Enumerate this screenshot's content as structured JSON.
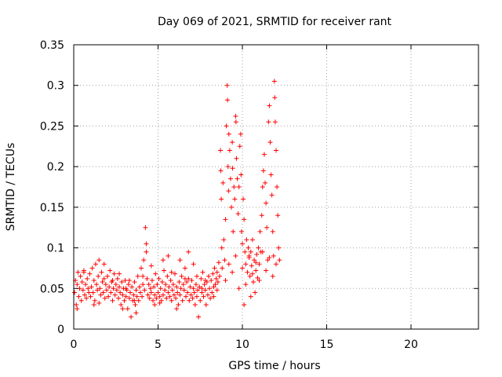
{
  "chart_data": {
    "type": "scatter",
    "title": "Day 069 of 2021, SRMTID for receiver rant",
    "xlabel": "GPS time / hours",
    "ylabel": "SRMTID / TECUs",
    "xlim": [
      0,
      24
    ],
    "ylim": [
      0,
      0.35
    ],
    "xticks": [
      0,
      5,
      10,
      15,
      20
    ],
    "xtick_labels": [
      "0",
      "5",
      "10",
      "15",
      "20"
    ],
    "yticks": [
      0,
      0.05,
      0.1,
      0.15,
      0.2,
      0.25,
      0.3,
      0.35
    ],
    "ytick_labels": [
      "0",
      "0.05",
      "0.1",
      "0.15",
      "0.2",
      "0.25",
      "0.3",
      "0.35"
    ],
    "grid": true,
    "marker": "plus",
    "color": "#ff0000",
    "series": [
      {
        "points": [
          [
            0.05,
            0.045
          ],
          [
            0.1,
            0.06
          ],
          [
            0.15,
            0.03
          ],
          [
            0.2,
            0.055
          ],
          [
            0.25,
            0.07
          ],
          [
            0.3,
            0.04
          ],
          [
            0.35,
            0.05
          ],
          [
            0.4,
            0.065
          ],
          [
            0.45,
            0.035
          ],
          [
            0.5,
            0.058
          ],
          [
            0.55,
            0.048
          ],
          [
            0.6,
            0.072
          ],
          [
            0.65,
            0.042
          ],
          [
            0.7,
            0.055
          ],
          [
            0.75,
            0.038
          ],
          [
            0.8,
            0.062
          ],
          [
            0.85,
            0.05
          ],
          [
            0.9,
            0.045
          ],
          [
            0.95,
            0.068
          ],
          [
            1.0,
            0.04
          ],
          [
            1.05,
            0.052
          ],
          [
            1.1,
            0.075
          ],
          [
            1.15,
            0.045
          ],
          [
            1.2,
            0.06
          ],
          [
            1.25,
            0.035
          ],
          [
            1.3,
            0.08
          ],
          [
            1.35,
            0.055
          ],
          [
            1.4,
            0.048
          ],
          [
            1.45,
            0.065
          ],
          [
            1.5,
            0.085
          ],
          [
            1.55,
            0.05
          ],
          [
            1.6,
            0.042
          ],
          [
            1.65,
            0.07
          ],
          [
            1.7,
            0.058
          ],
          [
            1.75,
            0.045
          ],
          [
            1.8,
            0.062
          ],
          [
            1.85,
            0.038
          ],
          [
            1.9,
            0.055
          ],
          [
            1.95,
            0.048
          ],
          [
            2.0,
            0.065
          ],
          [
            2.05,
            0.04
          ],
          [
            2.1,
            0.052
          ],
          [
            2.15,
            0.072
          ],
          [
            2.2,
            0.045
          ],
          [
            2.25,
            0.058
          ],
          [
            2.3,
            0.035
          ],
          [
            2.35,
            0.05
          ],
          [
            2.4,
            0.068
          ],
          [
            2.45,
            0.042
          ],
          [
            2.5,
            0.055
          ],
          [
            2.55,
            0.048
          ],
          [
            2.6,
            0.062
          ],
          [
            2.65,
            0.038
          ],
          [
            2.7,
            0.052
          ],
          [
            2.75,
            0.045
          ],
          [
            2.8,
            0.03
          ],
          [
            2.85,
            0.058
          ],
          [
            2.9,
            0.042
          ],
          [
            2.95,
            0.05
          ],
          [
            3.0,
            0.035
          ],
          [
            3.05,
            0.06
          ],
          [
            3.1,
            0.04
          ],
          [
            3.15,
            0.048
          ],
          [
            3.2,
            0.025
          ],
          [
            3.25,
            0.055
          ],
          [
            3.3,
            0.038
          ],
          [
            3.35,
            0.045
          ],
          [
            3.4,
            0.015
          ],
          [
            3.45,
            0.052
          ],
          [
            3.5,
            0.035
          ],
          [
            3.55,
            0.042
          ],
          [
            3.6,
            0.058
          ],
          [
            3.65,
            0.03
          ],
          [
            3.7,
            0.048
          ],
          [
            3.75,
            0.04
          ],
          [
            3.8,
            0.065
          ],
          [
            3.85,
            0.035
          ],
          [
            3.9,
            0.052
          ],
          [
            3.95,
            0.045
          ],
          [
            4.0,
            0.075
          ],
          [
            4.05,
            0.04
          ],
          [
            4.1,
            0.055
          ],
          [
            4.15,
            0.085
          ],
          [
            4.2,
            0.048
          ],
          [
            4.25,
            0.125
          ],
          [
            4.3,
            0.105
          ],
          [
            4.35,
            0.062
          ],
          [
            4.4,
            0.042
          ],
          [
            4.45,
            0.055
          ],
          [
            4.5,
            0.038
          ],
          [
            4.55,
            0.05
          ],
          [
            4.6,
            0.045
          ],
          [
            4.65,
            0.06
          ],
          [
            4.7,
            0.035
          ],
          [
            4.75,
            0.052
          ],
          [
            4.8,
            0.042
          ],
          [
            4.85,
            0.068
          ],
          [
            4.9,
            0.038
          ],
          [
            4.95,
            0.055
          ],
          [
            5.0,
            0.045
          ],
          [
            5.05,
            0.062
          ],
          [
            5.1,
            0.04
          ],
          [
            5.15,
            0.05
          ],
          [
            5.2,
            0.035
          ],
          [
            5.25,
            0.058
          ],
          [
            5.3,
            0.042
          ],
          [
            5.35,
            0.072
          ],
          [
            5.4,
            0.048
          ],
          [
            5.45,
            0.055
          ],
          [
            5.5,
            0.038
          ],
          [
            5.55,
            0.065
          ],
          [
            5.6,
            0.045
          ],
          [
            5.65,
            0.052
          ],
          [
            5.7,
            0.04
          ],
          [
            5.75,
            0.06
          ],
          [
            5.8,
            0.035
          ],
          [
            5.85,
            0.048
          ],
          [
            5.9,
            0.055
          ],
          [
            5.95,
            0.042
          ],
          [
            6.0,
            0.068
          ],
          [
            6.05,
            0.038
          ],
          [
            6.1,
            0.052
          ],
          [
            6.15,
            0.045
          ],
          [
            6.2,
            0.03
          ],
          [
            6.25,
            0.058
          ],
          [
            6.3,
            0.042
          ],
          [
            6.35,
            0.05
          ],
          [
            6.4,
            0.065
          ],
          [
            6.45,
            0.035
          ],
          [
            6.5,
            0.055
          ],
          [
            6.55,
            0.048
          ],
          [
            6.6,
            0.075
          ],
          [
            6.65,
            0.04
          ],
          [
            6.7,
            0.058
          ],
          [
            6.75,
            0.045
          ],
          [
            6.8,
            0.062
          ],
          [
            6.85,
            0.035
          ],
          [
            6.9,
            0.052
          ],
          [
            6.95,
            0.042
          ],
          [
            7.0,
            0.06
          ],
          [
            7.05,
            0.038
          ],
          [
            7.1,
            0.05
          ],
          [
            7.15,
            0.045
          ],
          [
            7.2,
            0.03
          ],
          [
            7.25,
            0.055
          ],
          [
            7.3,
            0.04
          ],
          [
            7.35,
            0.048
          ],
          [
            7.4,
            0.015
          ],
          [
            7.45,
            0.052
          ],
          [
            7.5,
            0.035
          ],
          [
            7.55,
            0.062
          ],
          [
            7.6,
            0.045
          ],
          [
            7.65,
            0.07
          ],
          [
            7.7,
            0.04
          ],
          [
            7.75,
            0.055
          ],
          [
            7.8,
            0.048
          ],
          [
            7.85,
            0.03
          ],
          [
            7.9,
            0.058
          ],
          [
            7.95,
            0.042
          ],
          [
            8.0,
            0.065
          ],
          [
            8.05,
            0.05
          ],
          [
            8.1,
            0.038
          ],
          [
            8.15,
            0.06
          ],
          [
            8.2,
            0.045
          ],
          [
            8.25,
            0.068
          ],
          [
            8.3,
            0.052
          ],
          [
            8.35,
            0.075
          ],
          [
            8.4,
            0.055
          ],
          [
            8.45,
            0.062
          ],
          [
            8.5,
            0.07
          ],
          [
            8.55,
            0.058
          ],
          [
            8.6,
            0.082
          ],
          [
            8.65,
            0.065
          ],
          [
            8.7,
            0.22
          ],
          [
            8.72,
            0.195
          ],
          [
            8.75,
            0.16
          ],
          [
            8.78,
            0.1
          ],
          [
            8.8,
            0.075
          ],
          [
            8.85,
            0.18
          ],
          [
            8.9,
            0.11
          ],
          [
            8.95,
            0.085
          ],
          [
            9.0,
            0.135
          ],
          [
            9.05,
            0.25
          ],
          [
            9.1,
            0.3
          ],
          [
            9.12,
            0.282
          ],
          [
            9.15,
            0.2
          ],
          [
            9.18,
            0.17
          ],
          [
            9.2,
            0.24
          ],
          [
            9.25,
            0.22
          ],
          [
            9.3,
            0.185
          ],
          [
            9.35,
            0.15
          ],
          [
            9.4,
            0.23
          ],
          [
            9.42,
            0.198
          ],
          [
            9.45,
            0.12
          ],
          [
            9.5,
            0.175
          ],
          [
            9.55,
            0.16
          ],
          [
            9.6,
            0.262
          ],
          [
            9.62,
            0.255
          ],
          [
            9.65,
            0.21
          ],
          [
            9.7,
            0.185
          ],
          [
            9.75,
            0.142
          ],
          [
            9.8,
            0.175
          ],
          [
            9.85,
            0.225
          ],
          [
            9.9,
            0.24
          ],
          [
            9.92,
            0.19
          ],
          [
            9.95,
            0.12
          ],
          [
            10.0,
            0.105
          ],
          [
            10.05,
            0.16
          ],
          [
            10.1,
            0.135
          ],
          [
            10.15,
            0.095
          ],
          [
            10.2,
            0.08
          ],
          [
            10.25,
            0.11
          ],
          [
            10.3,
            0.07
          ],
          [
            10.35,
            0.1
          ],
          [
            10.4,
            0.088
          ],
          [
            10.45,
            0.065
          ],
          [
            10.5,
            0.095
          ],
          [
            10.55,
            0.078
          ],
          [
            10.6,
            0.11
          ],
          [
            10.65,
            0.058
          ],
          [
            10.7,
            0.085
          ],
          [
            10.75,
            0.045
          ],
          [
            10.8,
            0.072
          ],
          [
            10.85,
            0.092
          ],
          [
            10.9,
            0.063
          ],
          [
            10.95,
            0.1
          ],
          [
            11.0,
            0.08
          ],
          [
            11.05,
            0.12
          ],
          [
            11.1,
            0.095
          ],
          [
            11.15,
            0.14
          ],
          [
            11.2,
            0.175
          ],
          [
            11.25,
            0.195
          ],
          [
            11.3,
            0.215
          ],
          [
            11.35,
            0.18
          ],
          [
            11.4,
            0.155
          ],
          [
            11.45,
            0.125
          ],
          [
            11.5,
            0.085
          ],
          [
            11.55,
            0.255
          ],
          [
            11.6,
            0.275
          ],
          [
            11.65,
            0.23
          ],
          [
            11.7,
            0.19
          ],
          [
            11.75,
            0.165
          ],
          [
            11.8,
            0.12
          ],
          [
            11.85,
            0.09
          ],
          [
            11.9,
            0.305
          ],
          [
            11.92,
            0.285
          ],
          [
            11.95,
            0.255
          ],
          [
            12.0,
            0.22
          ],
          [
            12.05,
            0.175
          ],
          [
            12.1,
            0.14
          ],
          [
            12.15,
            0.1
          ],
          [
            12.2,
            0.085
          ],
          [
            9.0,
            0.06
          ],
          [
            9.2,
            0.08
          ],
          [
            9.4,
            0.07
          ],
          [
            9.6,
            0.09
          ],
          [
            9.8,
            0.05
          ],
          [
            10.0,
            0.075
          ],
          [
            10.2,
            0.055
          ],
          [
            10.4,
            0.09
          ],
          [
            10.6,
            0.068
          ],
          [
            10.8,
            0.082
          ],
          [
            11.0,
            0.06
          ],
          [
            11.2,
            0.095
          ],
          [
            11.4,
            0.072
          ],
          [
            11.6,
            0.088
          ],
          [
            11.8,
            0.065
          ],
          [
            12.0,
            0.08
          ],
          [
            10.1,
            0.03
          ],
          [
            10.5,
            0.04
          ],
          [
            0.2,
            0.025
          ],
          [
            0.6,
            0.07
          ],
          [
            1.2,
            0.03
          ],
          [
            1.8,
            0.08
          ],
          [
            2.3,
            0.06
          ],
          [
            2.9,
            0.025
          ],
          [
            3.3,
            0.06
          ],
          [
            3.7,
            0.02
          ],
          [
            4.3,
            0.095
          ],
          [
            4.8,
            0.03
          ],
          [
            5.3,
            0.085
          ],
          [
            5.8,
            0.07
          ],
          [
            6.3,
            0.085
          ],
          [
            6.8,
            0.095
          ],
          [
            7.3,
            0.065
          ],
          [
            7.8,
            0.06
          ],
          [
            8.3,
            0.04
          ],
          [
            8.5,
            0.048
          ],
          [
            1.5,
            0.032
          ],
          [
            2.7,
            0.068
          ],
          [
            3.1,
            0.05
          ],
          [
            3.6,
            0.035
          ],
          [
            4.1,
            0.065
          ],
          [
            4.6,
            0.078
          ],
          [
            5.1,
            0.032
          ],
          [
            5.6,
            0.09
          ],
          [
            6.1,
            0.025
          ],
          [
            6.6,
            0.062
          ],
          [
            7.1,
            0.08
          ],
          [
            7.6,
            0.05
          ]
        ]
      }
    ]
  }
}
